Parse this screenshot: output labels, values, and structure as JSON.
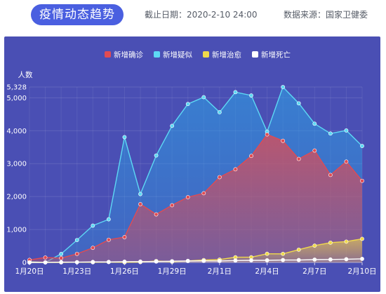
{
  "header": {
    "title": "疫情动态趋势",
    "date_label": "截止日期：",
    "date_value": "2020-2-10 24:00",
    "source_label": "数据来源：",
    "source_value": "国家卫健委"
  },
  "colors": {
    "title_bg": "#4a5fe0",
    "panel_bg": "#4a4fb4",
    "confirmed": "#e14b52",
    "suspected": "#5dd9f4",
    "recovered": "#f0d94c",
    "deaths": "#ffffff"
  },
  "chart_data": {
    "type": "area",
    "ylabel": "人数",
    "ylim": [
      0,
      5328
    ],
    "yticks": [
      0,
      1000,
      2000,
      3000,
      4000,
      5000,
      5328
    ],
    "ytick_labels": [
      "0",
      "1,000",
      "2,000",
      "3,000",
      "4,000",
      "5,000",
      "5,328"
    ],
    "legend_position": "top-center",
    "grid": true,
    "categories": [
      "1月20日",
      "1月21日",
      "1月22日",
      "1月23日",
      "1月24日",
      "1月25日",
      "1月26日",
      "1月27日",
      "1月28日",
      "1月29日",
      "1月30日",
      "1月31日",
      "2月1日",
      "2月2日",
      "2月3日",
      "2月4日",
      "2月5日",
      "2月6日",
      "2月7日",
      "2月8日",
      "2月9日",
      "2月10日"
    ],
    "xtick_labels": [
      {
        "index": 0,
        "label": "1月20日"
      },
      {
        "index": 3,
        "label": "1月23日"
      },
      {
        "index": 6,
        "label": "1月26日"
      },
      {
        "index": 9,
        "label": "1月29日"
      },
      {
        "index": 12,
        "label": "2月1日"
      },
      {
        "index": 15,
        "label": "2月4日"
      },
      {
        "index": 18,
        "label": "2月7日"
      },
      {
        "index": 21,
        "label": "2月10日"
      }
    ],
    "series": [
      {
        "name": "新增确诊",
        "color_key": "confirmed",
        "values": [
          77,
          149,
          131,
          259,
          444,
          688,
          769,
          1771,
          1459,
          1737,
          1982,
          2102,
          2590,
          2829,
          3235,
          3887,
          3694,
          3143,
          3399,
          2656,
          3062,
          2478
        ]
      },
      {
        "name": "新增疑似",
        "color_key": "suspected",
        "values": [
          27,
          0,
          257,
          680,
          1118,
          1309,
          3806,
          2077,
          3248,
          4148,
          4812,
          5019,
          4562,
          5173,
          5072,
          3971,
          5328,
          4833,
          4214,
          3916,
          4008,
          3536
        ]
      },
      {
        "name": "新增治愈",
        "color_key": "recovered",
        "values": [
          0,
          0,
          0,
          6,
          3,
          11,
          2,
          9,
          43,
          21,
          47,
          72,
          85,
          157,
          157,
          262,
          261,
          387,
          510,
          600,
          632,
          716
        ]
      },
      {
        "name": "新增死亡",
        "color_key": "deaths",
        "values": [
          0,
          3,
          8,
          8,
          16,
          15,
          24,
          26,
          26,
          38,
          43,
          46,
          45,
          57,
          64,
          65,
          73,
          73,
          86,
          89,
          97,
          108
        ]
      }
    ]
  }
}
